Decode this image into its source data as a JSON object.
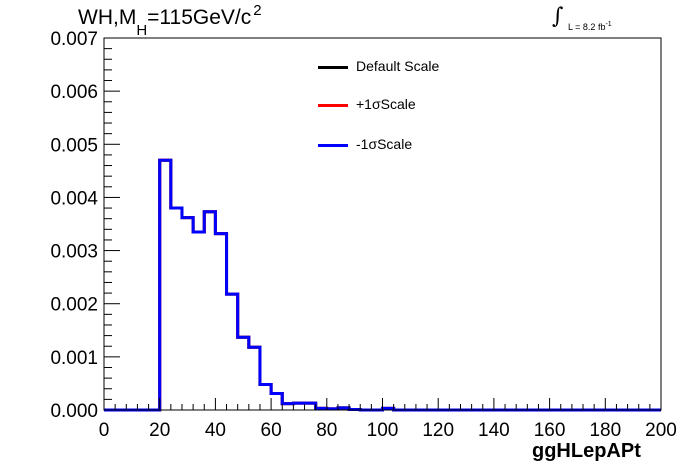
{
  "header": {
    "title_prefix": "WH,M",
    "title_sub": "H",
    "title_suffix": "=115GeV/c",
    "title_sup": "2",
    "lumi_integral": "∫",
    "lumi_text": "L = 8.2 fb",
    "lumi_sup": "-1"
  },
  "legend": [
    {
      "label": "Default Scale",
      "color": "#000000"
    },
    {
      "label": "+1σScale",
      "color": "#ff0000"
    },
    {
      "label": "-1σScale",
      "color": "#0000ff"
    }
  ],
  "chart_data": {
    "type": "line",
    "style": "step-histogram",
    "title": "WH,MH=115GeV/c2",
    "xlabel": "ggHLepAPt",
    "ylabel": "",
    "xlim": [
      0,
      200
    ],
    "ylim": [
      0,
      0.007
    ],
    "grid": false,
    "legend_position": "top-center",
    "x_ticks": [
      0,
      20,
      40,
      60,
      80,
      100,
      120,
      140,
      160,
      180,
      200
    ],
    "x_tick_labels": [
      "0",
      "20",
      "40",
      "60",
      "80",
      "100",
      "120",
      "140",
      "160",
      "180",
      "200"
    ],
    "y_ticks": [
      0,
      0.001,
      0.002,
      0.003,
      0.004,
      0.005,
      0.006,
      0.007
    ],
    "y_tick_labels": [
      "0.000",
      "0.001",
      "0.002",
      "0.003",
      "0.004",
      "0.005",
      "0.006",
      "0.007"
    ],
    "bin_edges": [
      0,
      4,
      8,
      12,
      16,
      20,
      24,
      28,
      32,
      36,
      40,
      44,
      48,
      52,
      56,
      60,
      64,
      68,
      72,
      76,
      80,
      84,
      88,
      92,
      96,
      100,
      104,
      108,
      112,
      116,
      120,
      124,
      128,
      132,
      136,
      140,
      144,
      148,
      152,
      156,
      160,
      164,
      168,
      172,
      176,
      180,
      184,
      188,
      192,
      196,
      200
    ],
    "series": [
      {
        "name": "Default Scale",
        "color": "#000000",
        "values": [
          0,
          0,
          0,
          0,
          0,
          0.0047,
          0.0038,
          0.00362,
          0.00335,
          0.00373,
          0.00332,
          0.00218,
          0.00137,
          0.00118,
          0.00048,
          0.00031,
          0.00012,
          0.00013,
          0.00013,
          3e-05,
          2e-05,
          4e-05,
          1e-05,
          0,
          0,
          3e-05,
          0,
          0,
          0,
          0,
          0,
          0,
          0,
          0,
          0,
          0,
          0,
          0,
          0,
          0,
          0,
          0,
          0,
          0,
          0,
          0,
          0,
          0,
          0,
          0
        ]
      },
      {
        "name": "+1σScale",
        "color": "#ff0000",
        "values": [
          0,
          0,
          0,
          0,
          0,
          0.0047,
          0.0038,
          0.00362,
          0.00335,
          0.00373,
          0.00332,
          0.00218,
          0.00137,
          0.00118,
          0.00048,
          0.00031,
          0.00012,
          0.00013,
          0.00013,
          3e-05,
          2e-05,
          4e-05,
          1e-05,
          0,
          0,
          3e-05,
          0,
          0,
          0,
          0,
          0,
          0,
          0,
          0,
          0,
          0,
          0,
          0,
          0,
          0,
          0,
          0,
          0,
          0,
          0,
          0,
          0,
          0,
          0,
          0
        ]
      },
      {
        "name": "-1σScale",
        "color": "#0000ff",
        "values": [
          0,
          0,
          0,
          0,
          0,
          0.0047,
          0.0038,
          0.00362,
          0.00335,
          0.00373,
          0.00332,
          0.00218,
          0.00137,
          0.00118,
          0.00048,
          0.00031,
          0.00012,
          0.00013,
          0.00013,
          3e-05,
          2e-05,
          4e-05,
          1e-05,
          0,
          0,
          3e-05,
          0,
          0,
          0,
          0,
          0,
          0,
          0,
          0,
          0,
          0,
          0,
          0,
          0,
          0,
          0,
          0,
          0,
          0,
          0,
          0,
          0,
          0,
          0,
          0
        ]
      }
    ]
  }
}
